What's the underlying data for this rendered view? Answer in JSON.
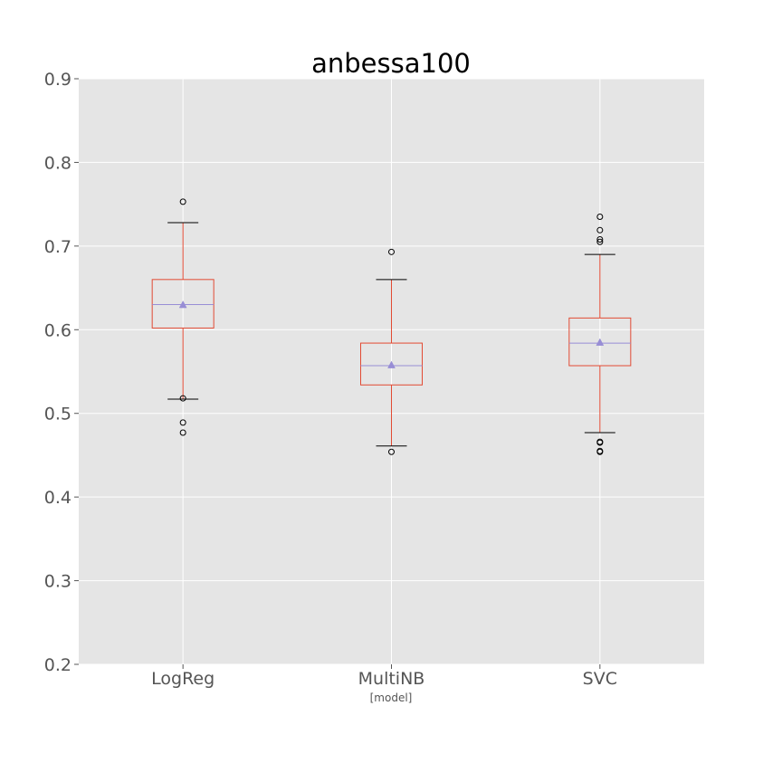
{
  "chart_data": {
    "type": "box",
    "title": "anbessa100",
    "xlabel": "[model]",
    "ylabel": "",
    "ylim": [
      0.2,
      0.9
    ],
    "yticks": [
      "0.2",
      "0.3",
      "0.4",
      "0.5",
      "0.6",
      "0.7",
      "0.8",
      "0.9"
    ],
    "grid": true,
    "show_means": true,
    "categories": [
      "LogReg",
      "MultiNB",
      "SVC"
    ],
    "series": [
      {
        "category": "LogReg",
        "whisker_low": 0.517,
        "q1": 0.602,
        "median": 0.63,
        "q3": 0.66,
        "whisker_high": 0.728,
        "mean": 0.63,
        "outliers": [
          0.753,
          0.518,
          0.489,
          0.477
        ]
      },
      {
        "category": "MultiNB",
        "whisker_low": 0.461,
        "q1": 0.534,
        "median": 0.557,
        "q3": 0.584,
        "whisker_high": 0.66,
        "mean": 0.558,
        "outliers": [
          0.693,
          0.454
        ]
      },
      {
        "category": "SVC",
        "whisker_low": 0.477,
        "q1": 0.557,
        "median": 0.584,
        "q3": 0.614,
        "whisker_high": 0.69,
        "mean": 0.585,
        "outliers": [
          0.735,
          0.719,
          0.708,
          0.705,
          0.466,
          0.465,
          0.455,
          0.454
        ]
      }
    ],
    "colors": {
      "plot_background": "#e5e5e5",
      "grid": "#ffffff",
      "box": "#e24a33",
      "whisker": "#e24a33",
      "cap": "#000000",
      "median": "#988ed5",
      "mean_marker": "#988ed5",
      "outlier_edge": "#000000"
    }
  }
}
